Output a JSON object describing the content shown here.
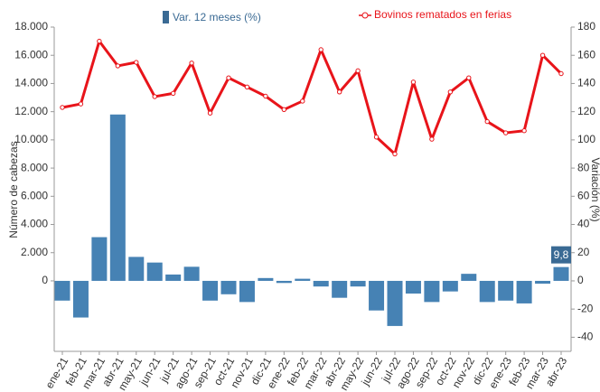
{
  "chart_data": {
    "type": "bar-line",
    "categories": [
      "ene-21",
      "feb-21",
      "mar-21",
      "abr-21",
      "may-21",
      "jun-21",
      "jul-21",
      "ago-21",
      "sep-21",
      "oct-21",
      "nov-21",
      "dic-21",
      "ene-22",
      "feb-22",
      "mar-22",
      "abr-22",
      "may-22",
      "jun-22",
      "jul-22",
      "ago-22",
      "sep-22",
      "oct-22",
      "nov-22",
      "dic-22",
      "ene-23",
      "feb-23",
      "mar-23",
      "abr-23"
    ],
    "ylabel": "Número de cabezas",
    "y2label": "Variación (%)",
    "ylim": [
      -5000,
      18000
    ],
    "yticks": [
      {
        "value": 18000,
        "label": "18.000"
      },
      {
        "value": 16000,
        "label": "16.000"
      },
      {
        "value": 14000,
        "label": "14.000"
      },
      {
        "value": 12000,
        "label": "12.000"
      },
      {
        "value": 10000,
        "label": "10.000"
      },
      {
        "value": 8000,
        "label": "8.000"
      },
      {
        "value": 6000,
        "label": "6.000"
      },
      {
        "value": 4000,
        "label": "4.000"
      },
      {
        "value": 2000,
        "label": "2.000"
      },
      0
    ],
    "y2lim": [
      -50,
      180
    ],
    "y2ticks": [
      180,
      160,
      140,
      120,
      100,
      80,
      60,
      40,
      20,
      0,
      -20,
      -40
    ],
    "series": [
      {
        "name": "Var. 12 meses (%)",
        "kind": "bar",
        "axis": "y2",
        "color": "#4682b4",
        "values": [
          -14,
          -26,
          31,
          118,
          17,
          13,
          4.5,
          10,
          -14,
          -9.5,
          -15,
          2,
          -1.5,
          1.5,
          -4,
          -12,
          -4,
          -21,
          -32,
          -9,
          -15,
          -7.5,
          5,
          -15,
          -14,
          -16,
          -2,
          9.8
        ],
        "value_labels": [
          null,
          null,
          null,
          null,
          null,
          null,
          null,
          null,
          null,
          null,
          null,
          null,
          null,
          null,
          null,
          null,
          null,
          null,
          null,
          null,
          null,
          null,
          null,
          null,
          null,
          null,
          null,
          "9,8"
        ]
      },
      {
        "name": "Bovinos rematados en ferias",
        "kind": "line",
        "color": "#e8141a",
        "values": [
          12300,
          12550,
          17000,
          15250,
          15500,
          13070,
          13300,
          15450,
          11900,
          14400,
          13750,
          13100,
          12150,
          12750,
          16400,
          13400,
          14900,
          10200,
          9000,
          14100,
          10050,
          13400,
          14400,
          11300,
          10500,
          10650,
          16000,
          14700
        ]
      }
    ]
  }
}
